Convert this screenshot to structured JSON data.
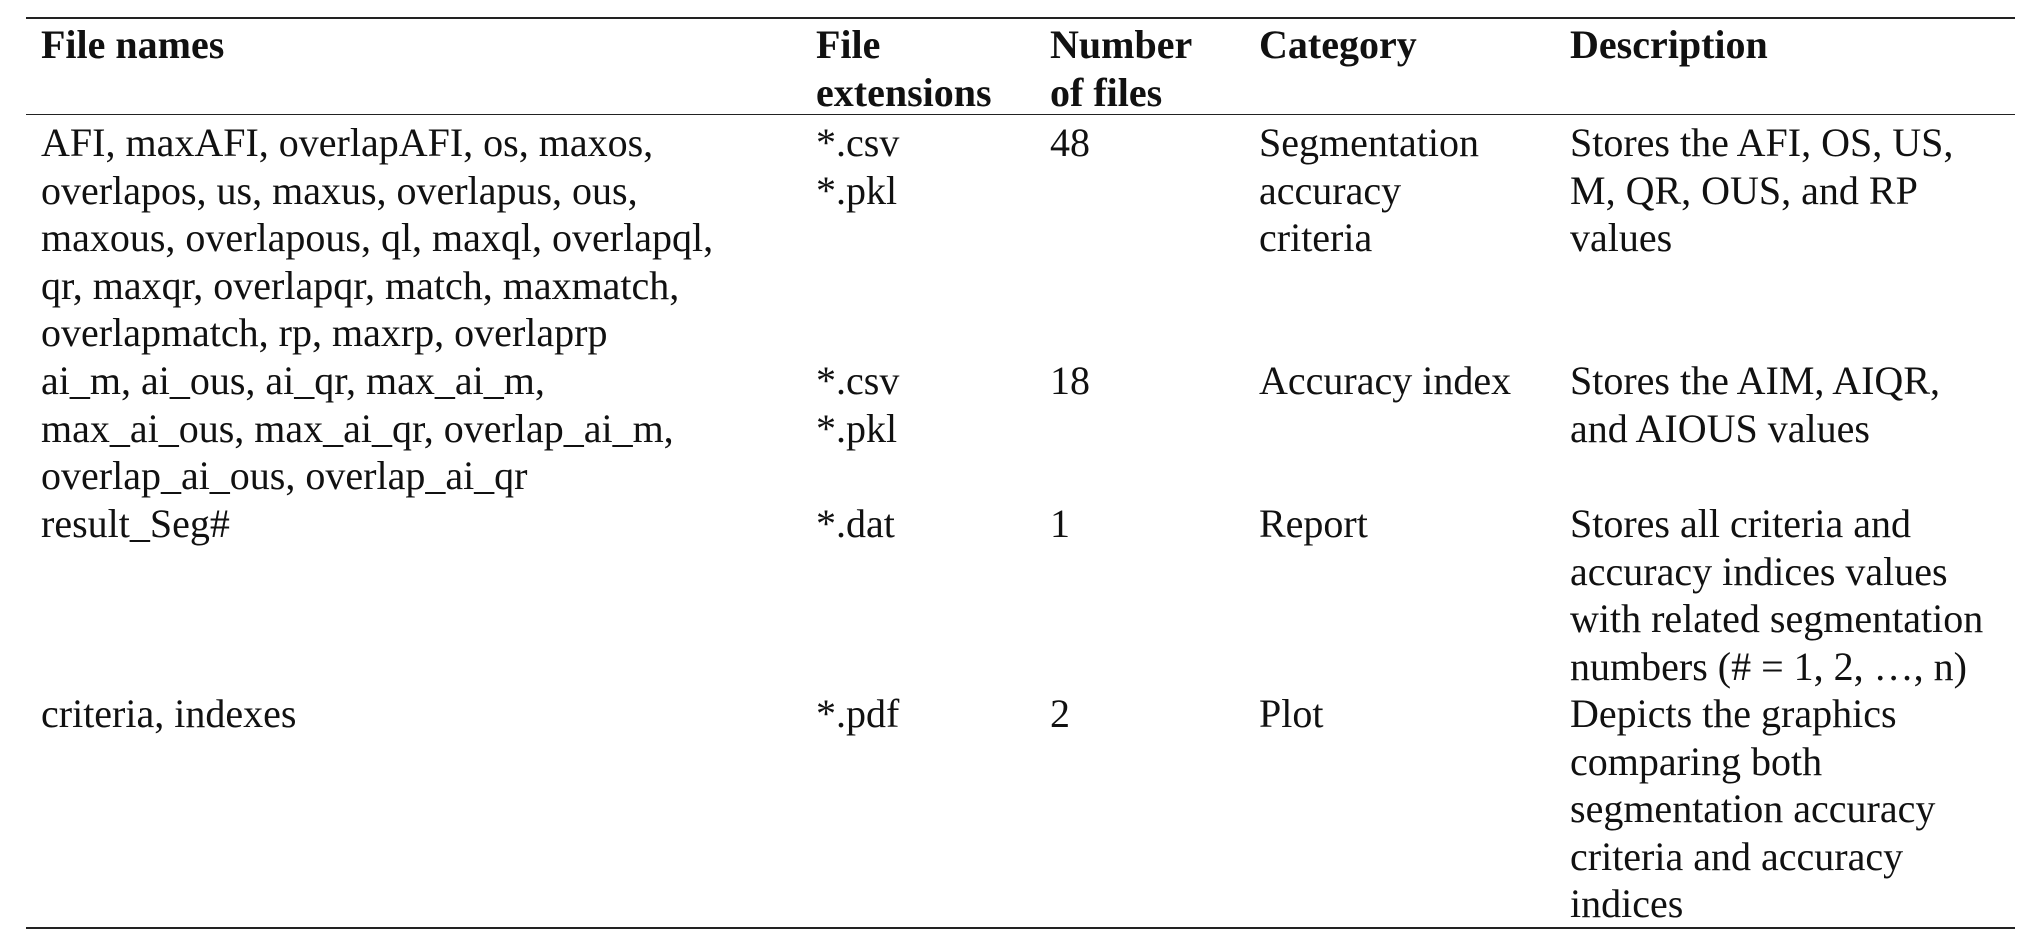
{
  "table": {
    "headers": {
      "file_names": "File names",
      "file_extensions": "File\nextensions",
      "number_of_files": "Number\nof files",
      "category": "Category",
      "description": "Description"
    },
    "rows": [
      {
        "file_names": "AFI, maxAFI, overlapAFI, os, maxos,\noverlapos, us, maxus, overlapus, ous,\nmaxous, overlapous, ql, maxql, overlapql,\nqr, maxqr, overlapqr, match, maxmatch,\noverlapmatch, rp, maxrp, overlaprp",
        "file_extensions": "*.csv\n*.pkl",
        "number_of_files": "48",
        "category": "Segmentation\naccuracy\ncriteria",
        "description": "Stores the AFI, OS, US,\nM, QR, OUS, and RP\nvalues"
      },
      {
        "file_names": "ai_m, ai_ous, ai_qr, max_ai_m,\nmax_ai_ous, max_ai_qr, overlap_ai_m,\noverlap_ai_ous, overlap_ai_qr",
        "file_extensions": "*.csv\n*.pkl",
        "number_of_files": "18",
        "category": "Accuracy index",
        "description": "Stores the AIM, AIQR,\nand AIOUS values"
      },
      {
        "file_names": "result_Seg#",
        "file_extensions": "*.dat",
        "number_of_files": "1",
        "category": "Report",
        "description": "Stores all criteria and\naccuracy indices values\nwith related segmentation\nnumbers (# = 1, 2, …, n)"
      },
      {
        "file_names": "criteria, indexes",
        "file_extensions": "*.pdf",
        "number_of_files": "2",
        "category": "Plot",
        "description": "Depicts the graphics\ncomparing both\nsegmentation accuracy\ncriteria and accuracy\nindices"
      }
    ]
  }
}
